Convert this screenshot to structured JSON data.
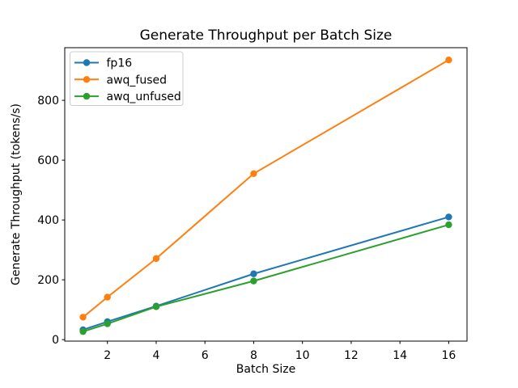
{
  "figure": {
    "background": "#ffffff"
  },
  "chart_data": {
    "type": "line",
    "title": "Generate Throughput per Batch Size",
    "xlabel": "Batch Size",
    "ylabel": "Generate Throughput (tokens/s)",
    "x": [
      1,
      2,
      4,
      8,
      16
    ],
    "series": [
      {
        "name": "fp16",
        "color": "#1f77b4",
        "values": [
          33,
          60,
          112,
          220,
          410
        ]
      },
      {
        "name": "awq_fused",
        "color": "#ff7f0e",
        "values": [
          75,
          142,
          271,
          555,
          935
        ]
      },
      {
        "name": "awq_unfused",
        "color": "#2ca02c",
        "values": [
          27,
          53,
          110,
          196,
          384
        ]
      }
    ],
    "xticks": [
      2,
      4,
      6,
      8,
      10,
      12,
      14,
      16
    ],
    "yticks": [
      0,
      200,
      400,
      600,
      800
    ],
    "xlim": [
      0.25,
      16.75
    ],
    "ylim": [
      -5,
      976
    ],
    "grid": false,
    "legend_position": "upper left",
    "marker": "o",
    "line_width": 2,
    "marker_radius": 4.2,
    "spine_color": "#000000",
    "legend_border_color": "#cccccc",
    "legend_background": "rgba(255,255,255,0.8)"
  }
}
